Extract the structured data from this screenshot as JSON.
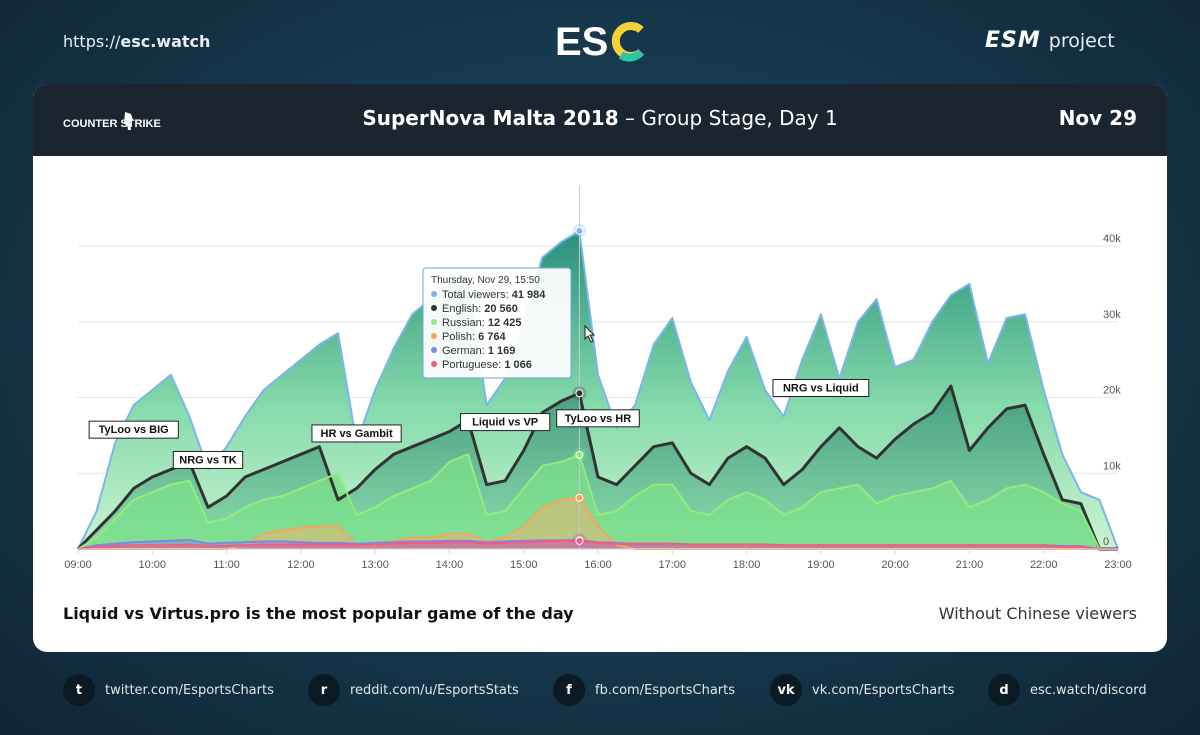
{
  "header": {
    "url_prefix": "https://",
    "url_host": "esc.watch",
    "brand_logo": "ESC",
    "esm_logo": "ESM",
    "esm_project": "project"
  },
  "card": {
    "game_logo": "COUNTER STRIKE",
    "title_bold": "SuperNova Malta 2018",
    "title_rest": " – Group Stage, Day 1",
    "date": "Nov 29",
    "caption": "Liquid vs Virtus.pro is the most popular game of the day",
    "note": "Without Chinese viewers"
  },
  "footer": [
    {
      "icon": "twitter-icon",
      "glyph": "t",
      "text": "twitter.com/EsportsCharts"
    },
    {
      "icon": "reddit-icon",
      "glyph": "r",
      "text": "reddit.com/u/EsportsStats"
    },
    {
      "icon": "facebook-icon",
      "glyph": "f",
      "text": "fb.com/EsportsCharts"
    },
    {
      "icon": "vk-icon",
      "glyph": "vk",
      "text": "vk.com/EsportsCharts"
    },
    {
      "icon": "discord-icon",
      "glyph": "d",
      "text": "esc.watch/discord"
    }
  ],
  "colors": {
    "total": "#7cb5ec",
    "english": "#333333",
    "russian": "#90ed7d",
    "polish": "#f7a35c",
    "german": "#8085e9",
    "portuguese": "#f15c80",
    "fill_dark": "#1a7d6a",
    "fill_light": "#7fdca8"
  },
  "chart_data": {
    "type": "area",
    "x": [
      "09:00",
      "09:15",
      "09:30",
      "09:45",
      "10:00",
      "10:15",
      "10:30",
      "10:45",
      "11:00",
      "11:15",
      "11:30",
      "11:45",
      "12:00",
      "12:15",
      "12:30",
      "12:45",
      "13:00",
      "13:15",
      "13:30",
      "13:45",
      "14:00",
      "14:15",
      "14:30",
      "14:45",
      "15:00",
      "15:15",
      "15:30",
      "15:45",
      "16:00",
      "16:15",
      "16:30",
      "16:45",
      "17:00",
      "17:15",
      "17:30",
      "17:45",
      "18:00",
      "18:15",
      "18:30",
      "18:45",
      "19:00",
      "19:15",
      "19:30",
      "19:45",
      "20:00",
      "20:15",
      "20:30",
      "20:45",
      "21:00",
      "21:15",
      "21:30",
      "21:45",
      "22:00",
      "22:15",
      "22:30",
      "22:45",
      "23:00"
    ],
    "x_ticks": [
      "09:00",
      "10:00",
      "11:00",
      "12:00",
      "13:00",
      "14:00",
      "15:00",
      "16:00",
      "17:00",
      "18:00",
      "19:00",
      "20:00",
      "21:00",
      "22:00",
      "23:00"
    ],
    "y_ticks": [
      "0",
      "10k",
      "20k",
      "30k",
      "40k"
    ],
    "ylim": [
      0,
      40000
    ],
    "series": [
      {
        "name": "Total viewers",
        "key": "total",
        "values": [
          0,
          5000,
          14000,
          19000,
          21000,
          23000,
          17500,
          10500,
          13500,
          17500,
          21000,
          23000,
          25000,
          27000,
          28500,
          14000,
          21000,
          26500,
          31000,
          33000,
          35500,
          36000,
          19000,
          22500,
          30000,
          38500,
          40500,
          41984,
          23000,
          16000,
          19000,
          27000,
          30500,
          22000,
          17000,
          23500,
          28000,
          21000,
          17500,
          25000,
          31000,
          22500,
          30000,
          33000,
          24000,
          25000,
          30000,
          33500,
          35000,
          24500,
          30500,
          31000,
          21000,
          12500,
          7500,
          6500,
          0
        ]
      },
      {
        "name": "English",
        "key": "english",
        "values": [
          0,
          2500,
          5000,
          8000,
          9500,
          10500,
          11500,
          5500,
          7000,
          9500,
          10500,
          11500,
          12500,
          13500,
          6500,
          8000,
          10500,
          12500,
          13500,
          14500,
          15500,
          17000,
          8500,
          9000,
          13000,
          18000,
          19500,
          20560,
          9500,
          8500,
          11000,
          13500,
          14000,
          10000,
          8500,
          12000,
          13500,
          12000,
          8500,
          10500,
          13500,
          16000,
          13500,
          12000,
          14500,
          16500,
          18000,
          21500,
          13000,
          16000,
          18500,
          19000,
          12500,
          6500,
          6000,
          0,
          0
        ]
      },
      {
        "name": "Russian",
        "key": "russian",
        "values": [
          0,
          1500,
          4000,
          6500,
          7500,
          8500,
          9000,
          3500,
          4000,
          5500,
          6500,
          7000,
          8000,
          9000,
          10000,
          4500,
          5500,
          7000,
          8000,
          9000,
          11500,
          12500,
          4500,
          5000,
          8000,
          11000,
          11500,
          12425,
          4500,
          5000,
          7000,
          8500,
          8500,
          5000,
          4500,
          6500,
          7500,
          6500,
          4500,
          5500,
          7500,
          8000,
          8500,
          6000,
          7000,
          7500,
          8000,
          9000,
          5500,
          6500,
          8000,
          8500,
          7500,
          6000,
          5000,
          0,
          0
        ]
      },
      {
        "name": "Polish",
        "key": "polish",
        "values": [
          0,
          0,
          0,
          0,
          0,
          0,
          0,
          0,
          0,
          500,
          2000,
          2500,
          2800,
          3000,
          3000,
          500,
          500,
          1000,
          1500,
          1500,
          2000,
          2000,
          1000,
          1500,
          3000,
          5500,
          6500,
          6764,
          3000,
          500,
          0,
          0,
          0,
          0,
          0,
          0,
          0,
          0,
          0,
          0,
          0,
          0,
          0,
          0,
          0,
          0,
          0,
          0,
          0,
          0,
          0,
          0,
          0,
          0,
          0,
          0,
          0
        ]
      },
      {
        "name": "German",
        "key": "german",
        "values": [
          0,
          500,
          700,
          900,
          1000,
          1100,
          1200,
          700,
          800,
          900,
          1000,
          1000,
          900,
          800,
          800,
          700,
          800,
          900,
          1000,
          1000,
          1100,
          1100,
          900,
          1000,
          1100,
          1150,
          1160,
          1169,
          900,
          800,
          700,
          700,
          700,
          600,
          600,
          600,
          600,
          600,
          500,
          500,
          500,
          500,
          500,
          500,
          500,
          500,
          500,
          500,
          500,
          500,
          500,
          500,
          500,
          400,
          400,
          0,
          0
        ]
      },
      {
        "name": "Portuguese",
        "key": "portuguese",
        "values": [
          0,
          300,
          400,
          500,
          500,
          500,
          600,
          400,
          400,
          500,
          600,
          600,
          600,
          600,
          600,
          500,
          600,
          700,
          800,
          800,
          900,
          900,
          700,
          800,
          900,
          1000,
          1050,
          1066,
          800,
          700,
          700,
          700,
          700,
          600,
          600,
          600,
          600,
          600,
          500,
          500,
          500,
          500,
          500,
          500,
          500,
          500,
          500,
          500,
          500,
          500,
          500,
          500,
          500,
          300,
          300,
          0,
          0
        ]
      }
    ],
    "tooltip": {
      "title": "Thursday, Nov 29, 15:50",
      "rows": [
        {
          "name": "Total viewers",
          "value": "41 984"
        },
        {
          "name": "English",
          "value": "20 560"
        },
        {
          "name": "Russian",
          "value": "12 425"
        },
        {
          "name": "Polish",
          "value": "6 764"
        },
        {
          "name": "German",
          "value": "1 169"
        },
        {
          "name": "Portuguese",
          "value": "1 066"
        }
      ]
    },
    "annotations": [
      {
        "text": "TyLoo vs BIG",
        "at": "09:45"
      },
      {
        "text": "NRG vs TK",
        "at": "10:45"
      },
      {
        "text": "HR vs Gambit",
        "at": "12:45"
      },
      {
        "text": "Liquid vs VP",
        "at": "14:45"
      },
      {
        "text": "TyLoo vs HR",
        "at": "16:00"
      },
      {
        "text": "NRG vs Liquid",
        "at": "19:00"
      }
    ]
  }
}
